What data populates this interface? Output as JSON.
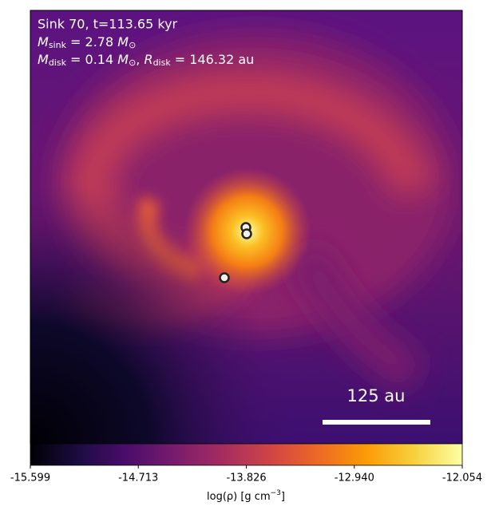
{
  "chart_data": {
    "type": "heatmap",
    "colormap": "inferno",
    "annotations": {
      "line1": "Sink 70, t=113.65 kyr",
      "line2": [
        "M",
        "sink",
        " = 2.78 ",
        "M",
        "⊙"
      ],
      "line3": [
        "M",
        "disk",
        " = 0.14 ",
        "M",
        "⊙",
        ", ",
        "R",
        "disk",
        " = 146.32 au"
      ],
      "scale_bar": "125 au"
    },
    "colorbar": {
      "label": [
        "log(ρ) [g cm",
        "−3",
        "]"
      ],
      "lim": [
        -15.599,
        -12.054
      ],
      "ticks": [
        {
          "value": -15.599,
          "label": "-15.599"
        },
        {
          "value": -14.713,
          "label": "-14.713"
        },
        {
          "value": -13.826,
          "label": "-13.826"
        },
        {
          "value": -12.94,
          "label": "-12.940"
        },
        {
          "value": -12.054,
          "label": "-12.054"
        }
      ]
    }
  }
}
